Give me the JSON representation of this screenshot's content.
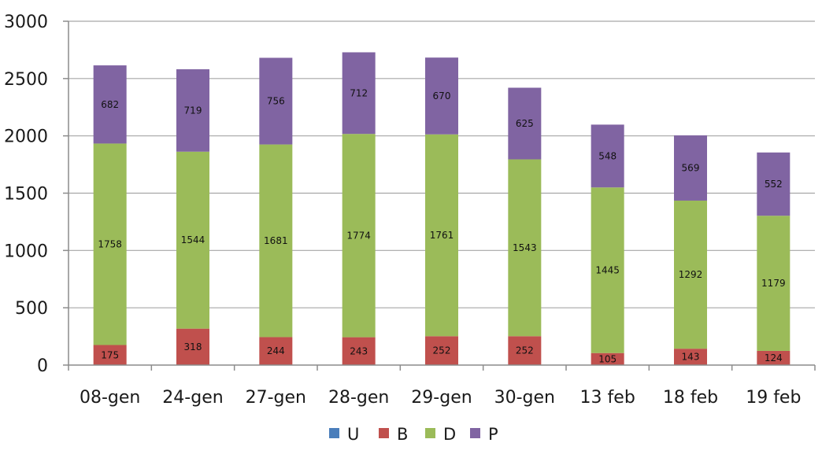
{
  "chart_data": {
    "type": "bar",
    "stacked": true,
    "title": "",
    "xlabel": "",
    "ylabel": "",
    "ylim": [
      0,
      3000
    ],
    "yticks": [
      0,
      500,
      1000,
      1500,
      2000,
      2500,
      3000
    ],
    "grid": true,
    "legend_position": "bottom",
    "categories": [
      "08-gen",
      "24-gen",
      "27-gen",
      "28-gen",
      "29-gen",
      "30-gen",
      "13 feb",
      "18 feb",
      "19 feb"
    ],
    "series": [
      {
        "name": "U",
        "color": "#4a7ebb",
        "values": [
          0,
          0,
          0,
          0,
          0,
          0,
          0,
          0,
          0
        ]
      },
      {
        "name": "B",
        "color": "#c0504d",
        "values": [
          175,
          318,
          244,
          243,
          252,
          252,
          105,
          143,
          124
        ]
      },
      {
        "name": "D",
        "color": "#9bbb59",
        "values": [
          1758,
          1544,
          1681,
          1774,
          1761,
          1543,
          1445,
          1292,
          1179
        ]
      },
      {
        "name": "P",
        "color": "#8064a2",
        "values": [
          682,
          719,
          756,
          712,
          670,
          625,
          548,
          569,
          552
        ]
      }
    ]
  }
}
